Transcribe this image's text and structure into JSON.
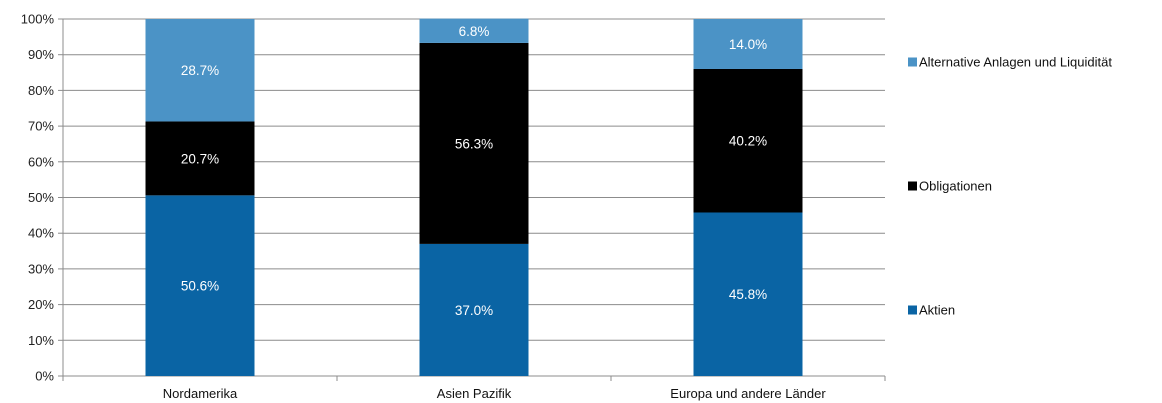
{
  "chart_data": {
    "type": "bar",
    "stacked": true,
    "categories": [
      "Nordamerika",
      "Asien Pazifik",
      "Europa und andere Länder"
    ],
    "series": [
      {
        "name": "Aktien",
        "values": [
          50.6,
          37.0,
          45.8
        ],
        "color": "#0a64a4",
        "labels": [
          "50.6%",
          "37.0%",
          "45.8%"
        ]
      },
      {
        "name": "Obligationen",
        "values": [
          20.7,
          56.3,
          40.2
        ],
        "color": "#000000",
        "labels": [
          "20.7%",
          "56.3%",
          "40.2%"
        ]
      },
      {
        "name": "Alternative Anlagen und Liquidität",
        "values": [
          28.7,
          6.8,
          14.0
        ],
        "color": "#4b93c6",
        "labels": [
          "28.7%",
          "6.8%",
          "14.0%"
        ]
      }
    ],
    "ylim": [
      0,
      100
    ],
    "yticks": [
      "0%",
      "10%",
      "20%",
      "30%",
      "40%",
      "50%",
      "60%",
      "70%",
      "80%",
      "90%",
      "100%"
    ],
    "grid": true,
    "legend_position": "right",
    "legend_order": [
      "Alternative Anlagen und Liquidität",
      "Obligationen",
      "Aktien"
    ]
  }
}
